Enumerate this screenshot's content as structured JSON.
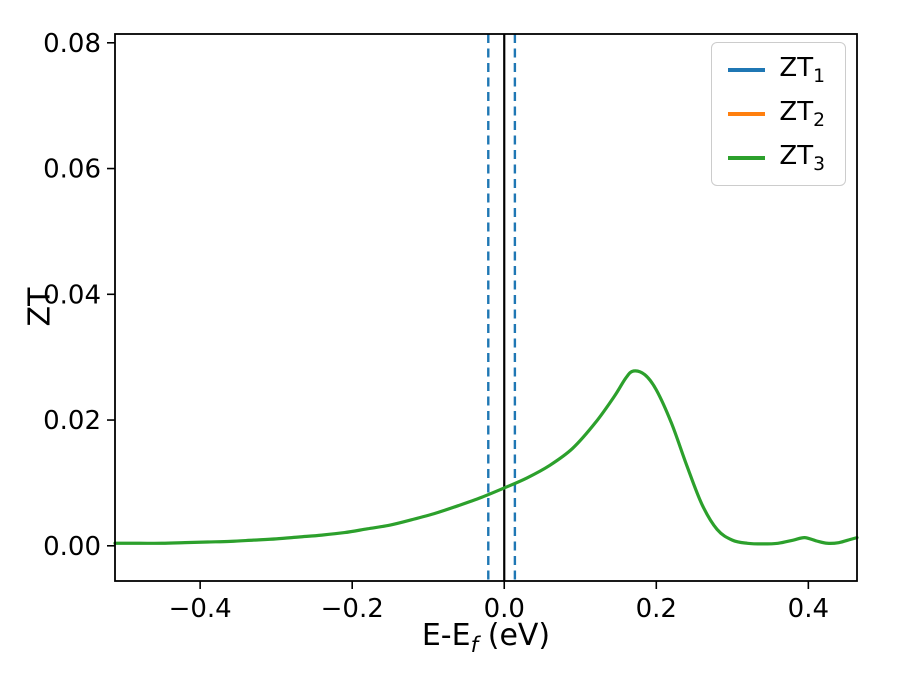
{
  "chart_data": {
    "type": "line",
    "title": "",
    "xlabel_prefix": "E-E",
    "xlabel_sub": "f",
    "xlabel_suffix": " (eV)",
    "ylabel": "ZT",
    "xlim": [
      -0.512,
      0.464
    ],
    "ylim": [
      -0.0056,
      0.0814
    ],
    "xticks": [
      -0.4,
      -0.2,
      0.0,
      0.2,
      0.4
    ],
    "xtick_labels": [
      "−0.4",
      "−0.2",
      "0.0",
      "0.2",
      "0.4"
    ],
    "yticks": [
      0.0,
      0.02,
      0.04,
      0.06,
      0.08
    ],
    "ytick_labels": [
      "0.00",
      "0.02",
      "0.04",
      "0.06",
      "0.08"
    ],
    "grid": false,
    "legend_position": "upper right",
    "axis_color": "#000000",
    "series": [
      {
        "label_base": "ZT",
        "label_sub": "1",
        "color": "#1f77b4",
        "points": []
      },
      {
        "label_base": "ZT",
        "label_sub": "2",
        "color": "#ff7f0e",
        "points": []
      },
      {
        "label_base": "ZT",
        "label_sub": "3",
        "color": "#2ca02c",
        "line_width": 3.2,
        "points": [
          [
            -0.512,
            0.0004
          ],
          [
            -0.48,
            0.0004
          ],
          [
            -0.45,
            0.0004
          ],
          [
            -0.42,
            0.0005
          ],
          [
            -0.39,
            0.0006
          ],
          [
            -0.36,
            0.0007
          ],
          [
            -0.33,
            0.0009
          ],
          [
            -0.3,
            0.0011
          ],
          [
            -0.27,
            0.0014
          ],
          [
            -0.24,
            0.0017
          ],
          [
            -0.21,
            0.0021
          ],
          [
            -0.18,
            0.0027
          ],
          [
            -0.15,
            0.0033
          ],
          [
            -0.12,
            0.0042
          ],
          [
            -0.09,
            0.0052
          ],
          [
            -0.06,
            0.0064
          ],
          [
            -0.03,
            0.0077
          ],
          [
            0.0,
            0.0092
          ],
          [
            0.03,
            0.0108
          ],
          [
            0.06,
            0.0128
          ],
          [
            0.09,
            0.0155
          ],
          [
            0.12,
            0.0196
          ],
          [
            0.145,
            0.0238
          ],
          [
            0.16,
            0.0267
          ],
          [
            0.17,
            0.0278
          ],
          [
            0.185,
            0.0272
          ],
          [
            0.2,
            0.0248
          ],
          [
            0.22,
            0.0195
          ],
          [
            0.24,
            0.0128
          ],
          [
            0.26,
            0.0066
          ],
          [
            0.28,
            0.0026
          ],
          [
            0.3,
            0.0009
          ],
          [
            0.32,
            0.0004
          ],
          [
            0.34,
            0.0003
          ],
          [
            0.36,
            0.0004
          ],
          [
            0.38,
            0.0009
          ],
          [
            0.395,
            0.0013
          ],
          [
            0.41,
            0.0008
          ],
          [
            0.425,
            0.0004
          ],
          [
            0.44,
            0.0005
          ],
          [
            0.455,
            0.001
          ],
          [
            0.464,
            0.0013
          ]
        ]
      }
    ],
    "vlines": [
      {
        "x": -0.021,
        "color": "#1f77b4",
        "dash": "dashed",
        "width": 2.4
      },
      {
        "x": 0.0,
        "color": "#000000",
        "dash": "solid",
        "width": 2.2
      },
      {
        "x": 0.014,
        "color": "#1f77b4",
        "dash": "dashed",
        "width": 2.4
      }
    ]
  }
}
